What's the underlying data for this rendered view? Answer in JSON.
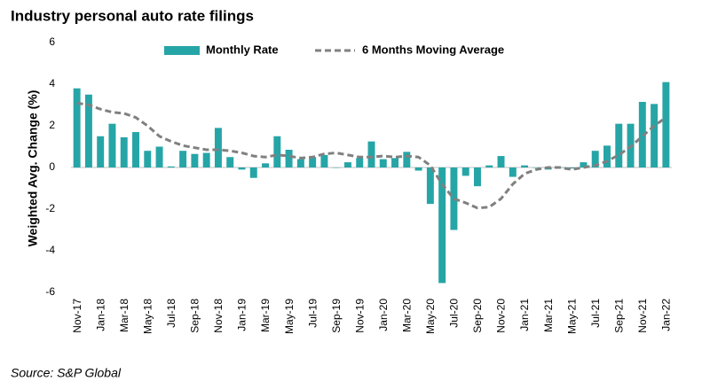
{
  "chart_data": {
    "type": "bar_line",
    "title": "Industry personal auto rate filings",
    "ylabel": "Weighted Avg. Change (%)",
    "source": "Source: S&P Global",
    "categories": [
      "Nov-17",
      null,
      "Jan-18",
      null,
      "Mar-18",
      null,
      "May-18",
      null,
      "Jul-18",
      null,
      "Sep-18",
      null,
      "Nov-18",
      null,
      "Jan-19",
      null,
      "Mar-19",
      null,
      "May-19",
      null,
      "Jul-19",
      null,
      "Sep-19",
      null,
      "Nov-19",
      null,
      "Jan-20",
      null,
      "Mar-20",
      null,
      "May-20",
      null,
      "Jul-20",
      null,
      "Sep-20",
      null,
      "Nov-20",
      null,
      "Jan-21",
      null,
      "Mar-21",
      null,
      "May-21",
      null,
      "Jul-21",
      null,
      "Sep-21",
      null,
      "Nov-21",
      null,
      "Jan-22"
    ],
    "series": [
      {
        "name": "Monthly Rate",
        "kind": "bar",
        "color": "#26a5a7",
        "values": [
          3.8,
          3.5,
          1.5,
          2.1,
          1.45,
          1.7,
          0.8,
          1.0,
          0.05,
          0.8,
          0.65,
          0.7,
          1.9,
          0.5,
          -0.1,
          -0.5,
          0.2,
          1.5,
          0.85,
          0.4,
          0.5,
          0.6,
          0,
          0.25,
          0.45,
          1.25,
          0.4,
          0.45,
          0.75,
          -0.15,
          -1.75,
          -5.55,
          -3.0,
          -0.4,
          -0.9,
          0.1,
          0.55,
          -0.45,
          0.1,
          0,
          -0.1,
          0,
          -0.05,
          0.25,
          0.8,
          1.05,
          2.1,
          2.1,
          3.15,
          3.05,
          4.1
        ]
      },
      {
        "name": "6 Months Moving Average",
        "kind": "line",
        "color": "#808080",
        "values": [
          3.1,
          3.0,
          2.8,
          2.65,
          2.6,
          2.4,
          2.0,
          1.5,
          1.25,
          1.05,
          0.95,
          0.85,
          0.85,
          0.8,
          0.7,
          0.55,
          0.5,
          0.6,
          0.55,
          0.45,
          0.5,
          0.65,
          0.7,
          0.6,
          0.5,
          0.5,
          0.55,
          0.5,
          0.55,
          0.5,
          0.1,
          -0.8,
          -1.5,
          -1.7,
          -1.95,
          -1.9,
          -1.5,
          -0.8,
          -0.3,
          -0.1,
          0,
          0,
          -0.1,
          0,
          0.1,
          0.3,
          0.6,
          1.0,
          1.5,
          2.0,
          2.4
        ]
      }
    ],
    "ylim": [
      -6,
      6
    ],
    "yticks": [
      -6,
      -4,
      -2,
      0,
      2,
      4,
      6
    ],
    "grid": false
  }
}
